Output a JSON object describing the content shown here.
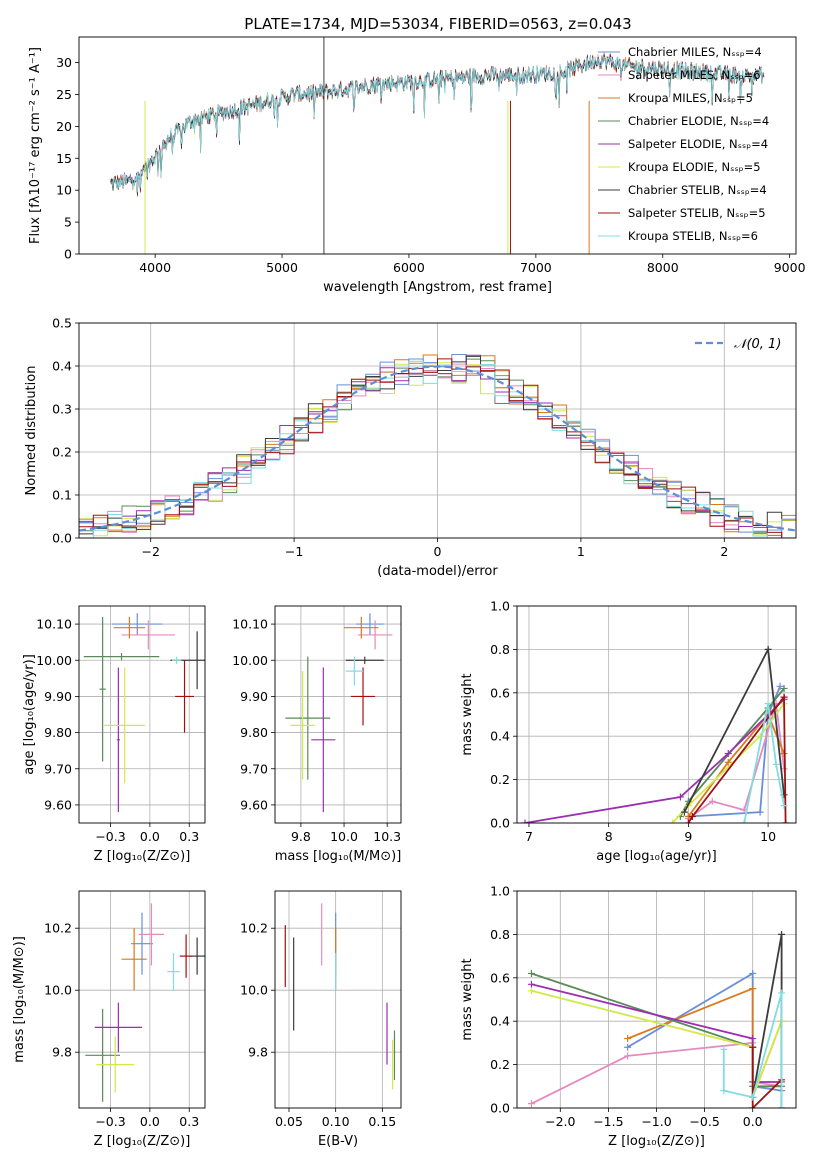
{
  "title": "PLATE=1734, MJD=53034, FIBERID=0563, z=0.043",
  "colors": {
    "Chabrier MILES": "#6a8fd8",
    "Salpeter MILES": "#e58abf",
    "Kroupa MILES": "#d97a1c",
    "Chabrier ELODIE": "#5a8a5a",
    "Salpeter ELODIE": "#9b2fb0",
    "Kroupa ELODIE": "#d4e84a",
    "Chabrier STELIB": "#3c3c3c",
    "Salpeter STELIB": "#a01010",
    "Kroupa STELIB": "#80dde0",
    "normal": "#5b8fd9"
  },
  "chart_data": [
    {
      "id": "spectrum",
      "type": "line",
      "title": "PLATE=1734, MJD=53034, FIBERID=0563, z=0.043",
      "xlabel": "wavelength [Angstrom, rest frame]",
      "ylabel": "Flux [fλ10⁻¹⁷ erg cm⁻² s⁻¹ A⁻¹]",
      "xlim": [
        3400,
        9050
      ],
      "ylim": [
        0,
        34
      ],
      "xticks": [
        4000,
        5000,
        6000,
        7000,
        8000,
        9000
      ],
      "yticks": [
        0,
        5,
        10,
        15,
        20,
        25,
        30
      ],
      "legend_position": "top-right",
      "series": [
        {
          "name": "Chabrier MILES, Nₛₛₚ=4",
          "model": "Chabrier MILES"
        },
        {
          "name": "Salpeter MILES, Nₛₛₚ=6",
          "model": "Salpeter MILES"
        },
        {
          "name": "Kroupa MILES, Nₛₛₚ=5",
          "model": "Kroupa MILES"
        },
        {
          "name": "Chabrier ELODIE, Nₛₛₚ=4",
          "model": "Chabrier ELODIE"
        },
        {
          "name": "Salpeter ELODIE, Nₛₛₚ=4",
          "model": "Salpeter ELODIE"
        },
        {
          "name": "Kroupa ELODIE, Nₛₛₚ=5",
          "model": "Kroupa ELODIE"
        },
        {
          "name": "Chabrier STELIB, Nₛₛₚ=4",
          "model": "Chabrier STELIB"
        },
        {
          "name": "Salpeter STELIB, Nₛₛₚ=5",
          "model": "Salpeter STELIB"
        },
        {
          "name": "Kroupa STELIB, Nₛₛₚ=6",
          "model": "Kroupa STELIB"
        }
      ],
      "continuum": [
        [
          3650,
          11
        ],
        [
          3800,
          11.5
        ],
        [
          3950,
          14
        ],
        [
          4100,
          18
        ],
        [
          4300,
          21
        ],
        [
          4500,
          22
        ],
        [
          4800,
          23.5
        ],
        [
          5100,
          25
        ],
        [
          5400,
          25.5
        ],
        [
          5700,
          26.5
        ],
        [
          6000,
          27
        ],
        [
          6300,
          27.5
        ],
        [
          6600,
          28
        ],
        [
          6900,
          28
        ],
        [
          7200,
          28.5
        ],
        [
          7500,
          30.5
        ],
        [
          7700,
          29.5
        ],
        [
          8000,
          29
        ],
        [
          8300,
          28.5
        ],
        [
          8600,
          28
        ],
        [
          8800,
          28
        ]
      ]
    },
    {
      "id": "residuals",
      "type": "line",
      "xlabel": "(data-model)/error",
      "ylabel": "Normed distribution",
      "xlim": [
        -2.5,
        2.5
      ],
      "ylim": [
        0,
        0.5
      ],
      "xticks": [
        -2,
        -1,
        0,
        1,
        2
      ],
      "yticks": [
        0.0,
        0.1,
        0.2,
        0.3,
        0.4,
        0.5
      ],
      "grid": true,
      "legend_position": "top-right",
      "reference": {
        "name": "𝒩(0, 1)",
        "mean": 0,
        "sigma": 1
      }
    },
    {
      "id": "age-vs-Z",
      "type": "scatter",
      "xlabel": "Z [log₁₀(Z/Z⊙)]",
      "ylabel": "age  [log₁₀(age/yr)]",
      "xlim": [
        -0.45,
        0.35
      ],
      "ylim": [
        9.55,
        10.15
      ],
      "xticks": [
        -0.25,
        0.0,
        0.25
      ],
      "yticks": [
        9.6,
        9.7,
        9.8,
        9.9,
        10.0,
        10.1
      ],
      "grid": true,
      "points": [
        {
          "model": "Chabrier MILES",
          "x": -0.08,
          "xerr": 0.16,
          "y": 10.1,
          "yerr": 0.03
        },
        {
          "model": "Salpeter MILES",
          "x": -0.01,
          "xerr": 0.17,
          "y": 10.07,
          "yerr": 0.04
        },
        {
          "model": "Kroupa MILES",
          "x": -0.13,
          "xerr": 0.1,
          "y": 10.09,
          "yerr": 0.03
        },
        {
          "model": "Chabrier ELODIE",
          "x": -0.3,
          "xerr": 0.02,
          "y": 9.92,
          "yerr": 0.2
        },
        {
          "model": "Salpeter ELODIE",
          "x": -0.2,
          "xerr": 0.01,
          "y": 9.78,
          "yerr": 0.2
        },
        {
          "model": "Kroupa ELODIE",
          "x": -0.16,
          "xerr": 0.13,
          "y": 9.82,
          "yerr": 0.16
        },
        {
          "model": "Chabrier STELIB",
          "x": 0.3,
          "xerr": 0.17,
          "y": 10.0,
          "yerr": 0.08
        },
        {
          "model": "Salpeter STELIB",
          "x": 0.22,
          "xerr": 0.06,
          "y": 9.9,
          "yerr": 0.1
        },
        {
          "model": "Kroupa STELIB",
          "x": 0.17,
          "xerr": 0.03,
          "y": 10.0,
          "yerr": 0.01
        },
        {
          "model": "Chabrier ELODIE",
          "x": -0.18,
          "xerr": 0.24,
          "y": 10.01,
          "yerr": 0.01
        }
      ]
    },
    {
      "id": "age-vs-mass",
      "type": "scatter",
      "xlabel": "mass [log₁₀(M/M⊙)]",
      "xlim": [
        9.6,
        10.33
      ],
      "ylim": [
        9.55,
        10.15
      ],
      "xticks": [
        9.75,
        10.0,
        10.25
      ],
      "yticks": [
        9.6,
        9.7,
        9.8,
        9.9,
        10.0,
        10.1
      ],
      "grid": true,
      "points": [
        {
          "model": "Chabrier MILES",
          "x": 10.15,
          "xerr": 0.08,
          "y": 10.1,
          "yerr": 0.03
        },
        {
          "model": "Salpeter MILES",
          "x": 10.18,
          "xerr": 0.1,
          "y": 10.07,
          "yerr": 0.04
        },
        {
          "model": "Kroupa MILES",
          "x": 10.1,
          "xerr": 0.1,
          "y": 10.09,
          "yerr": 0.03
        },
        {
          "model": "Chabrier ELODIE",
          "x": 9.79,
          "xerr": 0.13,
          "y": 9.84,
          "yerr": 0.17
        },
        {
          "model": "Salpeter ELODIE",
          "x": 9.88,
          "xerr": 0.07,
          "y": 9.78,
          "yerr": 0.2
        },
        {
          "model": "Kroupa ELODIE",
          "x": 9.76,
          "xerr": 0.07,
          "y": 9.82,
          "yerr": 0.15
        },
        {
          "model": "Chabrier STELIB",
          "x": 10.12,
          "xerr": 0.11,
          "y": 10.0,
          "yerr": 0.01
        },
        {
          "model": "Salpeter STELIB",
          "x": 10.11,
          "xerr": 0.07,
          "y": 9.9,
          "yerr": 0.08
        },
        {
          "model": "Kroupa STELIB",
          "x": 10.06,
          "xerr": 0.05,
          "y": 9.97,
          "yerr": 0.04
        }
      ]
    },
    {
      "id": "weight-vs-age",
      "type": "line",
      "xlabel": "age  [log₁₀(age/yr)]",
      "ylabel": "mass weight",
      "xlim": [
        6.85,
        10.35
      ],
      "ylim": [
        0,
        1
      ],
      "xticks": [
        7,
        8,
        9,
        10
      ],
      "yticks": [
        0.0,
        0.2,
        0.4,
        0.6,
        0.8,
        1.0
      ],
      "grid": true,
      "series": [
        {
          "model": "Chabrier MILES",
          "points": [
            [
              9.0,
              0.03
            ],
            [
              9.9,
              0.05
            ],
            [
              10.0,
              0.5
            ],
            [
              10.15,
              0.63
            ]
          ]
        },
        {
          "model": "Salpeter MILES",
          "points": [
            [
              9.0,
              0.02
            ],
            [
              9.3,
              0.1
            ],
            [
              9.7,
              0.06
            ],
            [
              10.1,
              0.55
            ],
            [
              10.2,
              0.25
            ]
          ]
        },
        {
          "model": "Kroupa MILES",
          "points": [
            [
              9.0,
              0.03
            ],
            [
              9.5,
              0.28
            ],
            [
              10.0,
              0.5
            ],
            [
              10.2,
              0.32
            ]
          ]
        },
        {
          "model": "Chabrier ELODIE",
          "points": [
            [
              8.9,
              0.03
            ],
            [
              9.0,
              0.1
            ],
            [
              10.0,
              0.53
            ],
            [
              10.2,
              0.62
            ]
          ]
        },
        {
          "model": "Salpeter ELODIE",
          "points": [
            [
              6.95,
              0.0
            ],
            [
              8.9,
              0.12
            ],
            [
              9.5,
              0.32
            ],
            [
              10.2,
              0.57
            ]
          ]
        },
        {
          "model": "Kroupa ELODIE",
          "points": [
            [
              8.8,
              0.0
            ],
            [
              9.0,
              0.08
            ],
            [
              9.9,
              0.4
            ],
            [
              10.2,
              0.55
            ]
          ]
        },
        {
          "model": "Chabrier STELIB",
          "points": [
            [
              8.95,
              0.05
            ],
            [
              10.0,
              0.8
            ],
            [
              10.2,
              0.13
            ]
          ]
        },
        {
          "model": "Salpeter STELIB",
          "points": [
            [
              9.0,
              0.0
            ],
            [
              9.05,
              0.03
            ],
            [
              10.2,
              0.58
            ],
            [
              10.22,
              0.0
            ]
          ]
        },
        {
          "model": "Kroupa STELIB",
          "points": [
            [
              9.7,
              0.0
            ],
            [
              10.0,
              0.55
            ],
            [
              10.1,
              0.27
            ],
            [
              10.2,
              0.08
            ]
          ]
        }
      ]
    },
    {
      "id": "mass-vs-Z",
      "type": "scatter",
      "xlabel": "Z [log₁₀(Z/Z⊙)]",
      "ylabel": "mass [log₁₀(M/M⊙)]",
      "xlim": [
        -0.45,
        0.35
      ],
      "ylim": [
        9.62,
        10.32
      ],
      "xticks": [
        -0.25,
        0.0,
        0.25
      ],
      "yticks": [
        9.8,
        10.0,
        10.2
      ],
      "grid": true,
      "points": [
        {
          "model": "Chabrier MILES",
          "x": -0.05,
          "xerr": 0.07,
          "y": 10.15,
          "yerr": 0.1
        },
        {
          "model": "Salpeter MILES",
          "x": 0.01,
          "xerr": 0.08,
          "y": 10.18,
          "yerr": 0.1
        },
        {
          "model": "Kroupa MILES",
          "x": -0.1,
          "xerr": 0.08,
          "y": 10.1,
          "yerr": 0.1
        },
        {
          "model": "Chabrier ELODIE",
          "x": -0.3,
          "xerr": 0.11,
          "y": 9.79,
          "yerr": 0.15
        },
        {
          "model": "Salpeter ELODIE",
          "x": -0.2,
          "xerr": 0.15,
          "y": 9.88,
          "yerr": 0.08
        },
        {
          "model": "Kroupa ELODIE",
          "x": -0.22,
          "xerr": 0.12,
          "y": 9.76,
          "yerr": 0.09
        },
        {
          "model": "Chabrier STELIB",
          "x": 0.3,
          "xerr": 0.05,
          "y": 10.11,
          "yerr": 0.06
        },
        {
          "model": "Salpeter STELIB",
          "x": 0.23,
          "xerr": 0.04,
          "y": 10.11,
          "yerr": 0.07
        },
        {
          "model": "Kroupa STELIB",
          "x": 0.15,
          "xerr": 0.04,
          "y": 10.06,
          "yerr": 0.06
        }
      ]
    },
    {
      "id": "mass-vs-EBV",
      "type": "scatter",
      "xlabel": "E(B-V)",
      "xlim": [
        0.035,
        0.17
      ],
      "ylim": [
        9.62,
        10.32
      ],
      "xticks": [
        0.05,
        0.1,
        0.15
      ],
      "yticks": [
        9.8,
        10.0,
        10.2
      ],
      "grid": true,
      "points": [
        {
          "model": "Chabrier MILES",
          "x": 0.1,
          "y": 10.15,
          "yerr": 0.1
        },
        {
          "model": "Salpeter MILES",
          "x": 0.085,
          "y": 10.18,
          "yerr": 0.1
        },
        {
          "model": "Kroupa MILES",
          "x": 0.1,
          "y": 10.1,
          "yerr": 0.1
        },
        {
          "model": "Chabrier ELODIE",
          "x": 0.163,
          "y": 9.79,
          "yerr": 0.08
        },
        {
          "model": "Salpeter ELODIE",
          "x": 0.155,
          "y": 9.86,
          "yerr": 0.1
        },
        {
          "model": "Kroupa ELODIE",
          "x": 0.161,
          "y": 9.76,
          "yerr": 0.08
        },
        {
          "model": "Chabrier STELIB",
          "x": 0.055,
          "y": 10.02,
          "yerr": 0.15
        },
        {
          "model": "Salpeter STELIB",
          "x": 0.046,
          "y": 10.11,
          "yerr": 0.1
        },
        {
          "model": "Kroupa STELIB",
          "x": 0.1,
          "y": 10.06,
          "yerr": 0.06
        }
      ]
    },
    {
      "id": "weight-vs-Z",
      "type": "line",
      "xlabel": "Z [log₁₀(Z/Z⊙)]",
      "ylabel": "mass weight",
      "xlim": [
        -2.45,
        0.45
      ],
      "ylim": [
        0,
        1
      ],
      "xticks": [
        -2.0,
        -1.5,
        -1.0,
        -0.5,
        0.0
      ],
      "yticks": [
        0.0,
        0.2,
        0.4,
        0.6,
        0.8,
        1.0
      ],
      "grid": true,
      "series": [
        {
          "model": "Chabrier MILES",
          "points": [
            [
              -1.3,
              0.28
            ],
            [
              0.0,
              0.62
            ],
            [
              0.0,
              0.1
            ],
            [
              0.3,
              0.08
            ]
          ]
        },
        {
          "model": "Salpeter MILES",
          "points": [
            [
              -2.3,
              0.02
            ],
            [
              -1.3,
              0.24
            ],
            [
              0.0,
              0.3
            ],
            [
              0.0,
              0.12
            ],
            [
              0.3,
              0.1
            ]
          ]
        },
        {
          "model": "Kroupa MILES",
          "points": [
            [
              -1.3,
              0.32
            ],
            [
              0.0,
              0.55
            ],
            [
              0.0,
              0.05
            ],
            [
              0.3,
              0.4
            ]
          ]
        },
        {
          "model": "Chabrier ELODIE",
          "points": [
            [
              -2.3,
              0.62
            ],
            [
              0.0,
              0.28
            ],
            [
              0.0,
              0.1
            ],
            [
              0.3,
              0.1
            ]
          ]
        },
        {
          "model": "Salpeter ELODIE",
          "points": [
            [
              -2.3,
              0.57
            ],
            [
              0.0,
              0.32
            ],
            [
              0.0,
              0.12
            ],
            [
              0.3,
              0.12
            ]
          ]
        },
        {
          "model": "Kroupa ELODIE",
          "points": [
            [
              -2.3,
              0.54
            ],
            [
              0.0,
              0.28
            ],
            [
              0.0,
              0.05
            ],
            [
              0.3,
              0.4
            ]
          ]
        },
        {
          "model": "Chabrier STELIB",
          "points": [
            [
              0.0,
              0.05
            ],
            [
              0.3,
              0.8
            ],
            [
              0.3,
              0.0
            ]
          ]
        },
        {
          "model": "Salpeter STELIB",
          "points": [
            [
              0.0,
              0.28
            ],
            [
              0.0,
              0.0
            ],
            [
              0.3,
              0.13
            ]
          ]
        },
        {
          "model": "Kroupa STELIB",
          "points": [
            [
              -0.3,
              0.27
            ],
            [
              -0.3,
              0.08
            ],
            [
              0.0,
              0.05
            ],
            [
              0.3,
              0.53
            ],
            [
              0.3,
              0.0
            ]
          ]
        }
      ]
    }
  ]
}
